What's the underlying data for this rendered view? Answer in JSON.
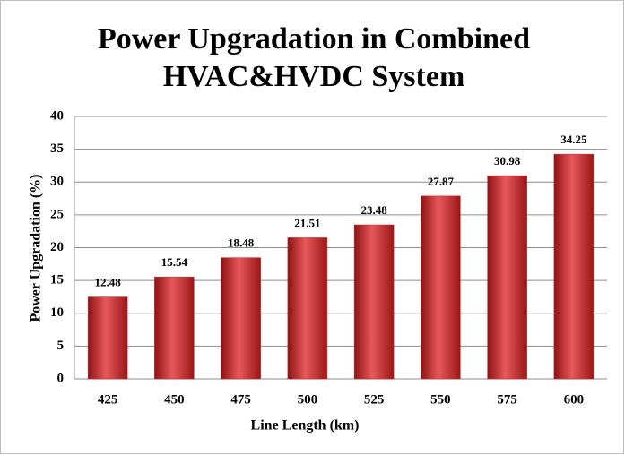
{
  "chart_data": {
    "type": "bar",
    "title": [
      "Power Upgradation in Combined",
      "HVAC&HVDC System"
    ],
    "x_label": "Line Length (km)",
    "y_label": "Power Upgradation (%)",
    "categories": [
      "425",
      "450",
      "475",
      "500",
      "525",
      "550",
      "575",
      "600"
    ],
    "values": [
      12.48,
      15.54,
      18.48,
      21.51,
      23.48,
      27.87,
      30.98,
      34.25
    ],
    "color": "#c8282b",
    "ylim": [
      0,
      40
    ],
    "yticks": [
      0,
      5,
      10,
      15,
      20,
      25,
      30,
      35,
      40
    ],
    "grid": true
  }
}
